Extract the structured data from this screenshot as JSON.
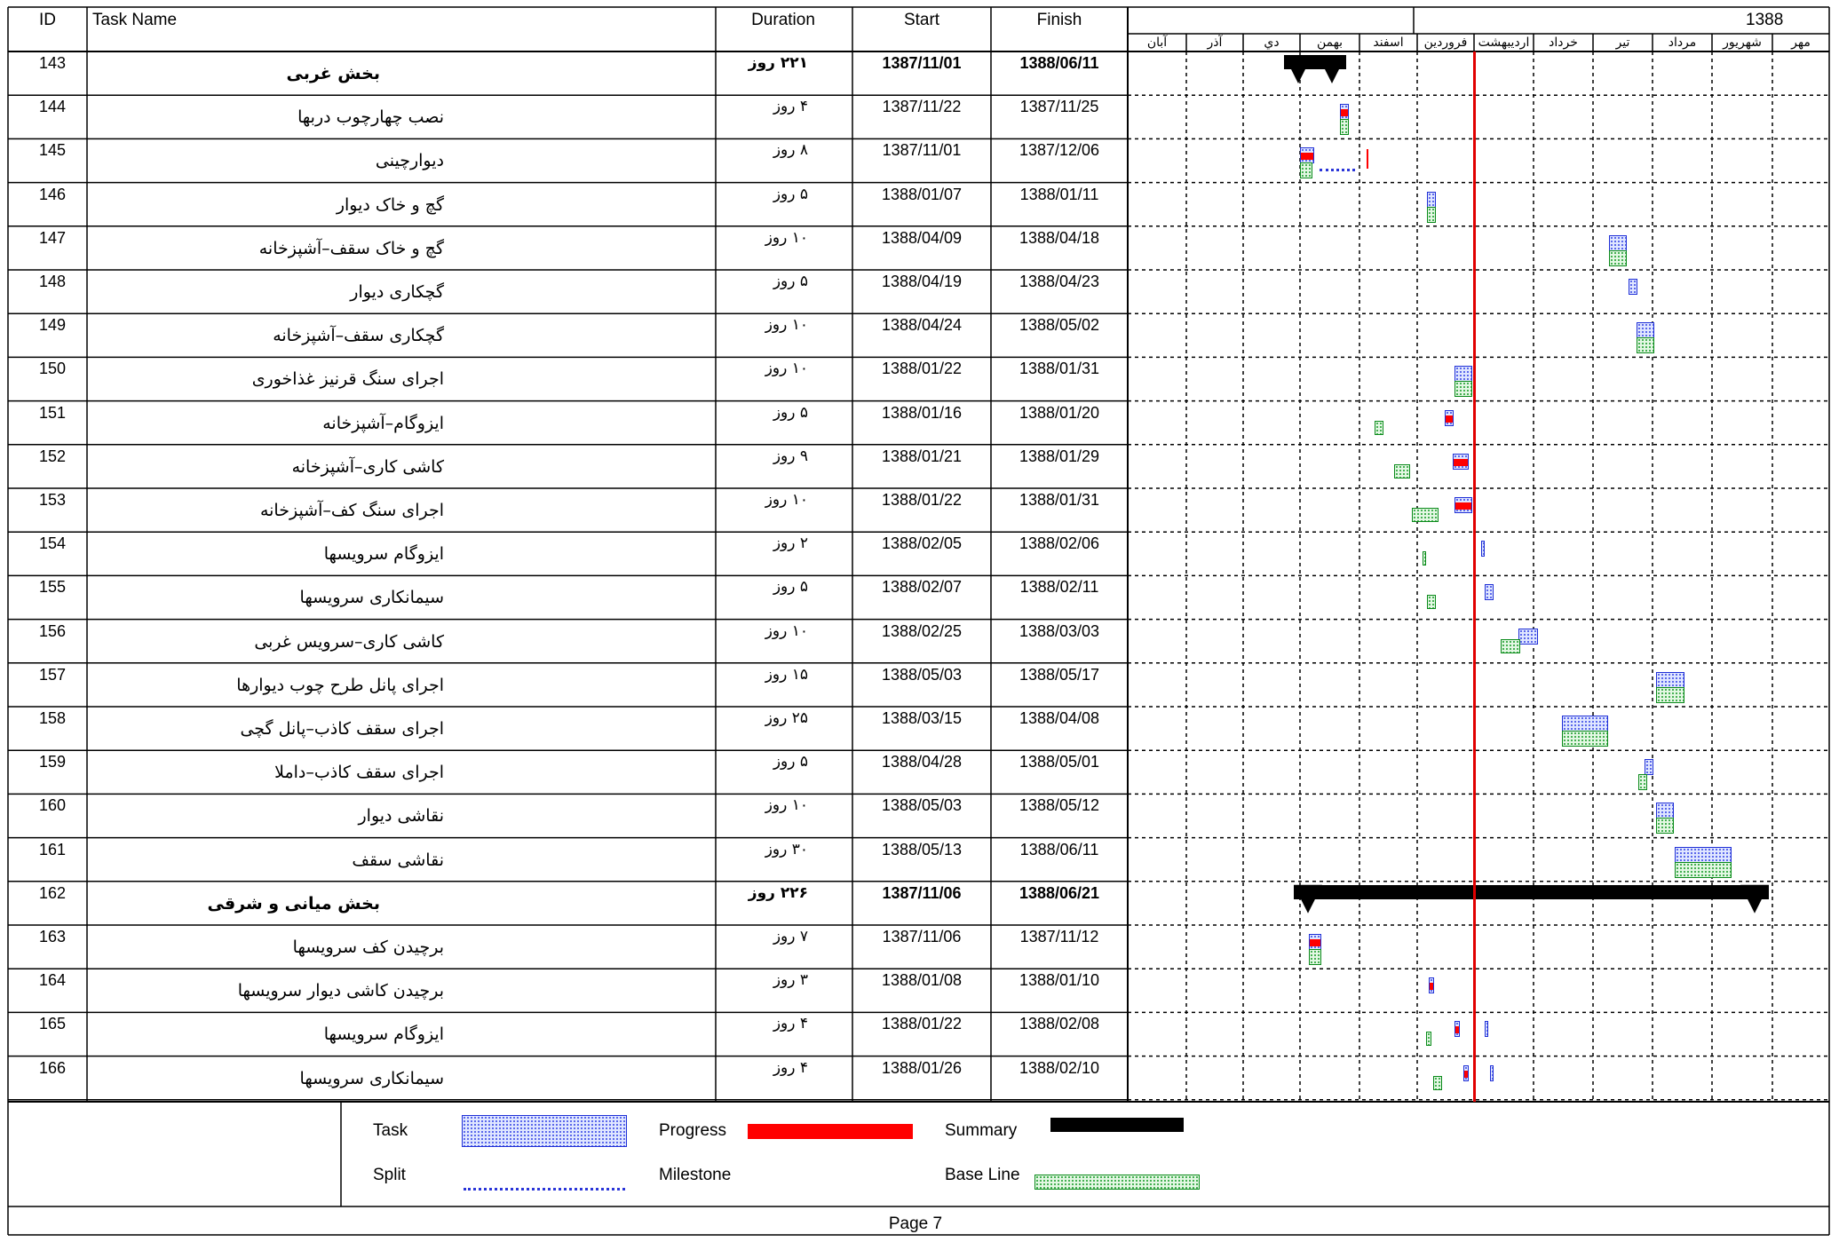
{
  "headers": {
    "id": "ID",
    "task_name": "Task Name",
    "duration": "Duration",
    "start": "Start",
    "finish": "Finish",
    "year": "1388"
  },
  "months": [
    "آبان",
    "آذر",
    "دي",
    "بهمن",
    "اسفند",
    "فروردين",
    "ارديبهشت",
    "خرداد",
    "تير",
    "مرداد",
    "شهريور",
    "مهر"
  ],
  "rows": [
    {
      "id": "143",
      "name": "بخش غربی",
      "duration": "۲۲۱ روز",
      "start": "1387/11/01",
      "finish": "1388/06/11",
      "summary": true
    },
    {
      "id": "144",
      "name": "نصب چهارچوب دربها",
      "duration": "۴ روز",
      "start": "1387/11/22",
      "finish": "1387/11/25"
    },
    {
      "id": "145",
      "name": "دیوارچینی",
      "duration": "۸ روز",
      "start": "1387/11/01",
      "finish": "1387/12/06"
    },
    {
      "id": "146",
      "name": "گچ و خاک دیوار",
      "duration": "۵ روز",
      "start": "1388/01/07",
      "finish": "1388/01/11"
    },
    {
      "id": "147",
      "name": "گچ و خاک سقف–آشپزخانه",
      "duration": "۱۰ روز",
      "start": "1388/04/09",
      "finish": "1388/04/18"
    },
    {
      "id": "148",
      "name": "گچکاری دیوار",
      "duration": "۵ روز",
      "start": "1388/04/19",
      "finish": "1388/04/23"
    },
    {
      "id": "149",
      "name": "گچکاری سقف–آشپزخانه",
      "duration": "۱۰ روز",
      "start": "1388/04/24",
      "finish": "1388/05/02"
    },
    {
      "id": "150",
      "name": "اجرای سنگ قرنیز غذاخوری",
      "duration": "۱۰ روز",
      "start": "1388/01/22",
      "finish": "1388/01/31"
    },
    {
      "id": "151",
      "name": "ایزوگام–آشپزخانه",
      "duration": "۵ روز",
      "start": "1388/01/16",
      "finish": "1388/01/20"
    },
    {
      "id": "152",
      "name": "کاشی کاری–آشپزخانه",
      "duration": "۹ روز",
      "start": "1388/01/21",
      "finish": "1388/01/29"
    },
    {
      "id": "153",
      "name": "اجرای سنگ کف–آشپزخانه",
      "duration": "۱۰ روز",
      "start": "1388/01/22",
      "finish": "1388/01/31"
    },
    {
      "id": "154",
      "name": "ایزوگام سرویسها",
      "duration": "۲ روز",
      "start": "1388/02/05",
      "finish": "1388/02/06"
    },
    {
      "id": "155",
      "name": "سیمانکاری سرویسها",
      "duration": "۵ روز",
      "start": "1388/02/07",
      "finish": "1388/02/11"
    },
    {
      "id": "156",
      "name": "کاشی کاری–سرویس غربی",
      "duration": "۱۰ روز",
      "start": "1388/02/25",
      "finish": "1388/03/03"
    },
    {
      "id": "157",
      "name": "اجرای پانل طرح چوب دیوارها",
      "duration": "۱۵ روز",
      "start": "1388/05/03",
      "finish": "1388/05/17"
    },
    {
      "id": "158",
      "name": "اجرای سقف کاذب–پانل گچی",
      "duration": "۲۵ روز",
      "start": "1388/03/15",
      "finish": "1388/04/08"
    },
    {
      "id": "159",
      "name": "اجرای سقف کاذب–داملا",
      "duration": "۵ روز",
      "start": "1388/04/28",
      "finish": "1388/05/01"
    },
    {
      "id": "160",
      "name": "نقاشی دیوار",
      "duration": "۱۰ روز",
      "start": "1388/05/03",
      "finish": "1388/05/12"
    },
    {
      "id": "161",
      "name": "نقاشی سقف",
      "duration": "۳۰ روز",
      "start": "1388/05/13",
      "finish": "1388/06/11"
    },
    {
      "id": "162",
      "name": "بخش میانی و شرقی",
      "duration": "۲۲۶ روز",
      "start": "1387/11/06",
      "finish": "1388/06/21",
      "summary": true
    },
    {
      "id": "163",
      "name": "برچیدن کف سرویسها",
      "duration": "۷ روز",
      "start": "1387/11/06",
      "finish": "1387/11/12"
    },
    {
      "id": "164",
      "name": "برچیدن کاشی دیوار سرویسها",
      "duration": "۳ روز",
      "start": "1388/01/08",
      "finish": "1388/01/10"
    },
    {
      "id": "165",
      "name": "ایزوگام سرویسها",
      "duration": "۴ روز",
      "start": "1388/01/22",
      "finish": "1388/02/08"
    },
    {
      "id": "166",
      "name": "سیمانکاری سرویسها",
      "duration": "۴ روز",
      "start": "1388/01/26",
      "finish": "1388/02/10"
    }
  ],
  "legend": {
    "task": "Task",
    "split": "Split",
    "progress": "Progress",
    "milestone": "Milestone",
    "summary": "Summary",
    "baseline": "Base Line"
  },
  "footer": {
    "page": "Page 7"
  },
  "colors": {
    "task_border": "#1f2fd6",
    "progress": "#ff0000",
    "baseline": "#0a8a1a",
    "summary": "#000000",
    "today_line": "#e00000"
  }
}
